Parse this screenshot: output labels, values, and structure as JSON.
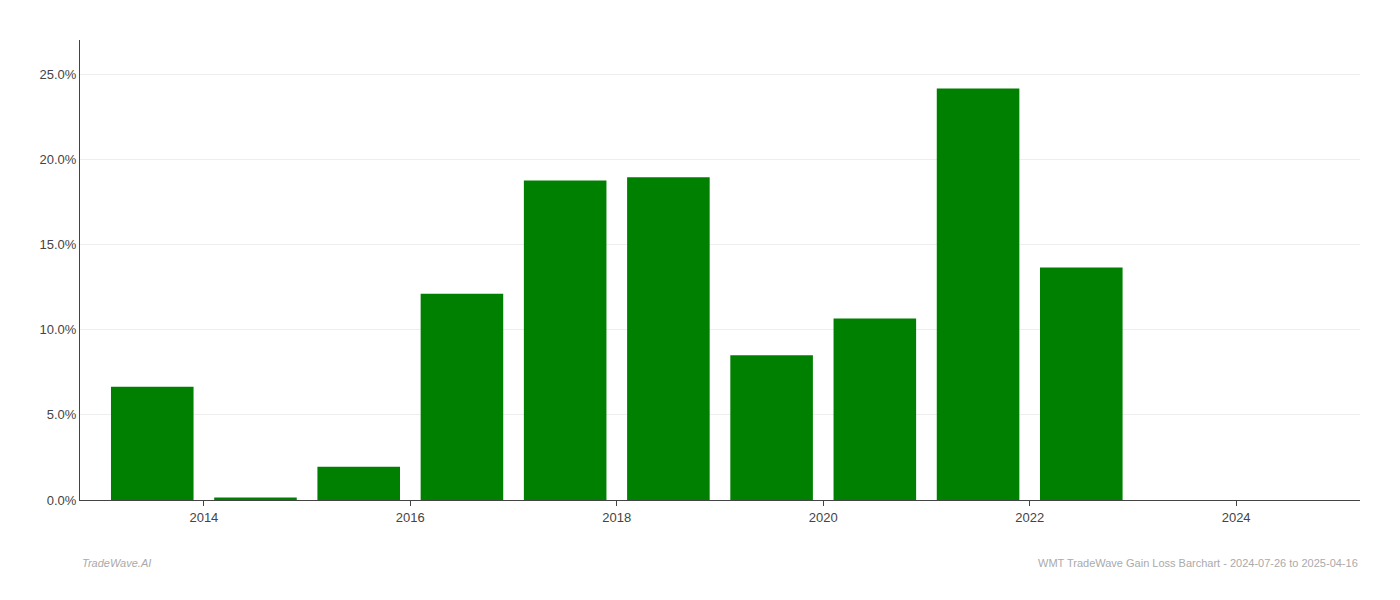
{
  "chart_data": {
    "type": "bar",
    "x": [
      2013.5,
      2014.5,
      2015.5,
      2016.5,
      2017.5,
      2018.5,
      2019.5,
      2020.5,
      2021.5,
      2022.5,
      2023.5
    ],
    "values": [
      6.65,
      0.15,
      1.95,
      12.1,
      18.75,
      18.95,
      8.5,
      10.65,
      24.15,
      13.65,
      0.0
    ],
    "color": "#008000",
    "xlim": [
      2012.8,
      2025.2
    ],
    "xticks": [
      2014,
      2016,
      2018,
      2020,
      2022,
      2024
    ],
    "ylim": [
      0,
      27.0
    ],
    "yticks": [
      {
        "value": 0.0,
        "label": "0.0%"
      },
      {
        "value": 5.0,
        "label": "5.0%"
      },
      {
        "value": 10.0,
        "label": "10.0%"
      },
      {
        "value": 15.0,
        "label": "15.0%"
      },
      {
        "value": 20.0,
        "label": "20.0%"
      },
      {
        "value": 25.0,
        "label": "25.0%"
      }
    ],
    "grid": true,
    "annotations": [
      "TradeWave.AI",
      "WMT TradeWave Gain Loss Barchart - 2024-07-26 to 2025-04-16"
    ]
  }
}
